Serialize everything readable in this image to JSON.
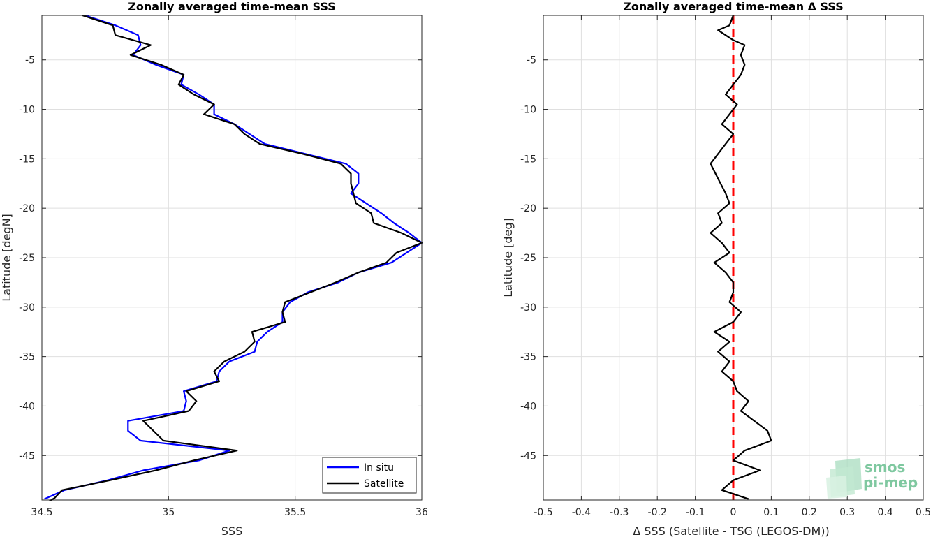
{
  "chart_data": [
    {
      "type": "line",
      "title": "Zonally averaged time-mean SSS",
      "xlabel": "SSS",
      "ylabel": "Latitude [degN]",
      "xlim": [
        34.5,
        36.0
      ],
      "ylim": [
        -49.5,
        -0.5
      ],
      "xticks": [
        "34.5",
        "35",
        "35.5",
        "36"
      ],
      "xtick_values": [
        34.5,
        35.0,
        35.5,
        36.0
      ],
      "yticks": [
        "-5",
        "-10",
        "-15",
        "-20",
        "-25",
        "-30",
        "-35",
        "-40",
        "-45"
      ],
      "ytick_values": [
        -5,
        -10,
        -15,
        -20,
        -25,
        -30,
        -35,
        -40,
        -45
      ],
      "grid": true,
      "legend_position": "bottom-right",
      "series": [
        {
          "name": "In situ",
          "color": "#0000ff",
          "points": [
            [
              34.67,
              -0.5
            ],
            [
              34.79,
              -1.5
            ],
            [
              34.88,
              -2.5
            ],
            [
              34.89,
              -3.5
            ],
            [
              34.86,
              -4.5
            ],
            [
              34.95,
              -5.5
            ],
            [
              35.06,
              -6.5
            ],
            [
              35.05,
              -7.5
            ],
            [
              35.12,
              -8.5
            ],
            [
              35.18,
              -9.5
            ],
            [
              35.18,
              -10.5
            ],
            [
              35.26,
              -11.5
            ],
            [
              35.32,
              -12.5
            ],
            [
              35.38,
              -13.5
            ],
            [
              35.54,
              -14.5
            ],
            [
              35.7,
              -15.5
            ],
            [
              35.75,
              -16.5
            ],
            [
              35.75,
              -17.5
            ],
            [
              35.72,
              -18.5
            ],
            [
              35.78,
              -19.5
            ],
            [
              35.84,
              -20.5
            ],
            [
              35.89,
              -21.5
            ],
            [
              35.95,
              -22.5
            ],
            [
              36.0,
              -23.5
            ],
            [
              35.94,
              -24.5
            ],
            [
              35.88,
              -25.5
            ],
            [
              35.75,
              -26.5
            ],
            [
              35.67,
              -27.5
            ],
            [
              35.55,
              -28.5
            ],
            [
              35.48,
              -29.5
            ],
            [
              35.45,
              -30.5
            ],
            [
              35.45,
              -31.5
            ],
            [
              35.39,
              -32.5
            ],
            [
              35.35,
              -33.5
            ],
            [
              35.34,
              -34.5
            ],
            [
              35.24,
              -35.5
            ],
            [
              35.2,
              -36.5
            ],
            [
              35.19,
              -37.5
            ],
            [
              35.06,
              -38.5
            ],
            [
              35.07,
              -39.5
            ],
            [
              35.06,
              -40.5
            ],
            [
              34.84,
              -41.5
            ],
            [
              34.84,
              -42.5
            ],
            [
              34.89,
              -43.5
            ],
            [
              35.24,
              -44.5
            ],
            [
              35.12,
              -45.5
            ],
            [
              34.9,
              -46.5
            ],
            [
              34.76,
              -47.5
            ],
            [
              34.59,
              -48.5
            ],
            [
              34.51,
              -49.4
            ]
          ]
        },
        {
          "name": "Satellite",
          "color": "#000000",
          "points": [
            [
              34.66,
              -0.5
            ],
            [
              34.78,
              -1.5
            ],
            [
              34.79,
              -2.5
            ],
            [
              34.93,
              -3.5
            ],
            [
              34.85,
              -4.5
            ],
            [
              34.97,
              -5.5
            ],
            [
              35.06,
              -6.5
            ],
            [
              35.04,
              -7.5
            ],
            [
              35.1,
              -8.5
            ],
            [
              35.18,
              -9.5
            ],
            [
              35.14,
              -10.5
            ],
            [
              35.26,
              -11.5
            ],
            [
              35.3,
              -12.5
            ],
            [
              35.36,
              -13.5
            ],
            [
              35.53,
              -14.5
            ],
            [
              35.68,
              -15.5
            ],
            [
              35.72,
              -16.5
            ],
            [
              35.72,
              -17.5
            ],
            [
              35.73,
              -18.5
            ],
            [
              35.74,
              -19.5
            ],
            [
              35.8,
              -20.5
            ],
            [
              35.81,
              -21.5
            ],
            [
              35.92,
              -22.5
            ],
            [
              36.0,
              -23.5
            ],
            [
              35.9,
              -24.5
            ],
            [
              35.86,
              -25.5
            ],
            [
              35.75,
              -26.5
            ],
            [
              35.66,
              -27.5
            ],
            [
              35.56,
              -28.5
            ],
            [
              35.46,
              -29.5
            ],
            [
              35.45,
              -30.5
            ],
            [
              35.46,
              -31.5
            ],
            [
              35.33,
              -32.5
            ],
            [
              35.34,
              -33.5
            ],
            [
              35.3,
              -34.5
            ],
            [
              35.22,
              -35.5
            ],
            [
              35.18,
              -36.5
            ],
            [
              35.2,
              -37.5
            ],
            [
              35.07,
              -38.5
            ],
            [
              35.11,
              -39.5
            ],
            [
              35.08,
              -40.5
            ],
            [
              34.9,
              -41.5
            ],
            [
              34.94,
              -42.5
            ],
            [
              34.98,
              -43.5
            ],
            [
              35.27,
              -44.5
            ],
            [
              35.1,
              -45.5
            ],
            [
              34.95,
              -46.5
            ],
            [
              34.77,
              -47.5
            ],
            [
              34.58,
              -48.5
            ],
            [
              34.55,
              -49.3
            ],
            [
              34.53,
              -49.6
            ]
          ]
        }
      ]
    },
    {
      "type": "line",
      "title": "Zonally averaged time-mean Δ SSS",
      "xlabel": "Δ SSS (Satellite - TSG (LEGOS-DM))",
      "ylabel": "Latitude [deg]",
      "xlim": [
        -0.5,
        0.5
      ],
      "ylim": [
        -49.5,
        -0.5
      ],
      "xticks": [
        "-0.5",
        "-0.4",
        "-0.3",
        "-0.2",
        "-0.1",
        "0",
        "0.1",
        "0.2",
        "0.3",
        "0.4",
        "0.5"
      ],
      "xtick_values": [
        -0.5,
        -0.4,
        -0.3,
        -0.2,
        -0.1,
        0,
        0.1,
        0.2,
        0.3,
        0.4,
        0.5
      ],
      "yticks": [
        "-5",
        "-10",
        "-15",
        "-20",
        "-25",
        "-30",
        "-35",
        "-40",
        "-45"
      ],
      "ytick_values": [
        -5,
        -10,
        -15,
        -20,
        -25,
        -30,
        -35,
        -40,
        -45
      ],
      "grid": true,
      "reference_line": {
        "x": 0,
        "color": "#ff0000",
        "style": "dashed"
      },
      "series": [
        {
          "color": "#000000",
          "points": [
            [
              0.0,
              -0.5
            ],
            [
              -0.01,
              -1.5
            ],
            [
              -0.04,
              -2.0
            ],
            [
              0.0,
              -3.0
            ],
            [
              0.03,
              -3.5
            ],
            [
              0.02,
              -4.5
            ],
            [
              0.03,
              -5.5
            ],
            [
              0.02,
              -6.5
            ],
            [
              0.0,
              -7.5
            ],
            [
              -0.02,
              -8.5
            ],
            [
              0.01,
              -9.5
            ],
            [
              -0.01,
              -10.5
            ],
            [
              -0.03,
              -11.5
            ],
            [
              0.0,
              -12.5
            ],
            [
              -0.02,
              -13.5
            ],
            [
              -0.04,
              -14.5
            ],
            [
              -0.06,
              -15.5
            ],
            [
              -0.04,
              -17.0
            ],
            [
              -0.02,
              -18.5
            ],
            [
              -0.01,
              -19.5
            ],
            [
              -0.04,
              -20.5
            ],
            [
              -0.03,
              -21.5
            ],
            [
              -0.06,
              -22.5
            ],
            [
              -0.03,
              -23.5
            ],
            [
              -0.01,
              -24.5
            ],
            [
              -0.05,
              -25.5
            ],
            [
              -0.02,
              -26.5
            ],
            [
              0.0,
              -27.5
            ],
            [
              0.0,
              -28.5
            ],
            [
              -0.01,
              -29.5
            ],
            [
              0.02,
              -30.5
            ],
            [
              0.0,
              -31.5
            ],
            [
              -0.05,
              -32.5
            ],
            [
              -0.01,
              -33.5
            ],
            [
              -0.04,
              -34.5
            ],
            [
              -0.01,
              -35.5
            ],
            [
              -0.03,
              -36.5
            ],
            [
              0.0,
              -37.5
            ],
            [
              0.01,
              -38.5
            ],
            [
              0.04,
              -39.5
            ],
            [
              0.02,
              -40.5
            ],
            [
              0.09,
              -42.5
            ],
            [
              0.1,
              -43.5
            ],
            [
              0.03,
              -44.5
            ],
            [
              0.0,
              -45.5
            ],
            [
              0.07,
              -46.5
            ],
            [
              0.0,
              -47.5
            ],
            [
              -0.03,
              -48.5
            ],
            [
              0.04,
              -49.4
            ]
          ]
        }
      ]
    }
  ],
  "legend": {
    "items": [
      {
        "label": "In situ",
        "color": "#0000ff"
      },
      {
        "label": "Satellite",
        "color": "#000000"
      }
    ]
  },
  "logo": {
    "line1": "smos",
    "line2": "pi-mep",
    "color": "#7fc8a0"
  }
}
